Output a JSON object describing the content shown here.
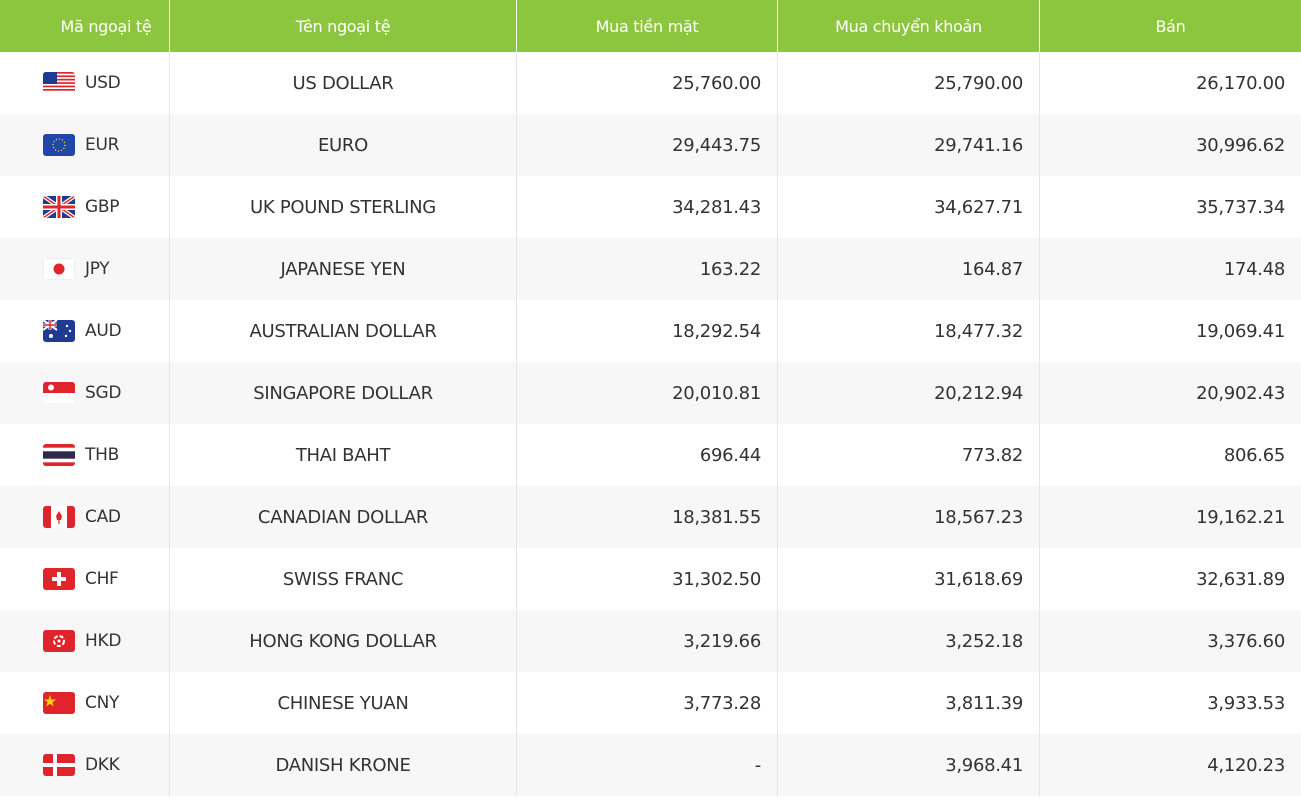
{
  "table": {
    "header": [
      "Mã ngoại tệ",
      "Tên ngoại tệ",
      "Mua tiền mặt",
      "Mua chuyển khoản",
      "Bán"
    ],
    "rows": [
      [
        "USD",
        "US DOLLAR",
        "25,760.00",
        "25,790.00",
        "26,170.00"
      ],
      [
        "EUR",
        "EURO",
        "29,443.75",
        "29,741.16",
        "30,996.62"
      ],
      [
        "GBP",
        "UK POUND STERLING",
        "34,281.43",
        "34,627.71",
        "35,737.34"
      ],
      [
        "JPY",
        "JAPANESE YEN",
        "163.22",
        "164.87",
        "174.48"
      ],
      [
        "AUD",
        "AUSTRALIAN DOLLAR",
        "18,292.54",
        "18,477.32",
        "19,069.41"
      ],
      [
        "SGD",
        "SINGAPORE DOLLAR",
        "20,010.81",
        "20,212.94",
        "20,902.43"
      ],
      [
        "THB",
        "THAI BAHT",
        "696.44",
        "773.82",
        "806.65"
      ],
      [
        "CAD",
        "CANADIAN DOLLAR",
        "18,381.55",
        "18,567.23",
        "19,162.21"
      ],
      [
        "CHF",
        "SWISS FRANC",
        "31,302.50",
        "31,618.69",
        "32,631.89"
      ],
      [
        "HKD",
        "HONG KONG DOLLAR",
        "3,219.66",
        "3,252.18",
        "3,376.60"
      ],
      [
        "CNY",
        "CHINESE YUAN",
        "3,773.28",
        "3,811.39",
        "3,933.53"
      ],
      [
        "DKK",
        "DANISH KRONE",
        "-",
        "3,968.41",
        "4,120.23"
      ]
    ]
  }
}
